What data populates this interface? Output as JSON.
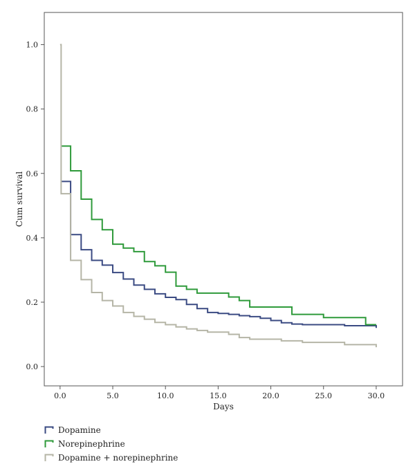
{
  "chart_data": {
    "type": "line",
    "step": true,
    "xlabel": "Days",
    "ylabel": "Cum survival",
    "xlim": [
      -1.5,
      32.5
    ],
    "ylim": [
      -0.06,
      1.1
    ],
    "xticks": [
      0,
      5,
      10,
      15,
      20,
      25,
      30
    ],
    "xtick_labels": [
      "0.0",
      "5.0",
      "10.0",
      "15.0",
      "20.0",
      "25.0",
      "30.0"
    ],
    "yticks": [
      0,
      0.2,
      0.4,
      0.6,
      0.8,
      1.0
    ],
    "ytick_labels": [
      "0.0",
      "0.2",
      "0.4",
      "0.6",
      "0.8",
      "1.0"
    ],
    "grid": false,
    "legend_position": "bottom-left",
    "series": [
      {
        "name": "Dopamine",
        "color": "#3a4a82",
        "x": [
          0.1,
          1,
          2,
          3,
          4,
          5,
          6,
          7,
          8,
          9,
          10,
          11,
          12,
          13,
          14,
          15,
          16,
          17,
          18,
          19,
          20,
          21,
          22,
          23,
          27,
          29,
          30
        ],
        "y": [
          0.575,
          0.41,
          0.363,
          0.33,
          0.315,
          0.292,
          0.272,
          0.253,
          0.24,
          0.226,
          0.215,
          0.208,
          0.193,
          0.18,
          0.168,
          0.165,
          0.162,
          0.158,
          0.155,
          0.15,
          0.143,
          0.136,
          0.132,
          0.13,
          0.127,
          0.127,
          0.12
        ]
      },
      {
        "name": "Norepinephrine",
        "color": "#2e9a3a",
        "x": [
          0.1,
          1,
          2,
          3,
          4,
          5,
          6,
          7,
          8,
          9,
          10,
          11,
          12,
          13,
          16,
          17,
          18,
          22,
          25,
          29,
          30
        ],
        "y": [
          0.685,
          0.608,
          0.52,
          0.457,
          0.425,
          0.38,
          0.368,
          0.357,
          0.326,
          0.313,
          0.293,
          0.25,
          0.24,
          0.228,
          0.216,
          0.205,
          0.185,
          0.162,
          0.152,
          0.13,
          0.13
        ]
      },
      {
        "name": "Dopamine + norepinephrine",
        "color": "#b5b5a6",
        "x": [
          0,
          0.1,
          1,
          2,
          3,
          4,
          5,
          6,
          7,
          8,
          9,
          10,
          11,
          12,
          13,
          14,
          16,
          17,
          18,
          21,
          23,
          27,
          29,
          30
        ],
        "y": [
          1.0,
          0.537,
          0.33,
          0.27,
          0.23,
          0.205,
          0.188,
          0.168,
          0.156,
          0.147,
          0.137,
          0.13,
          0.123,
          0.117,
          0.112,
          0.107,
          0.1,
          0.09,
          0.085,
          0.08,
          0.075,
          0.068,
          0.068,
          0.06
        ]
      }
    ]
  }
}
